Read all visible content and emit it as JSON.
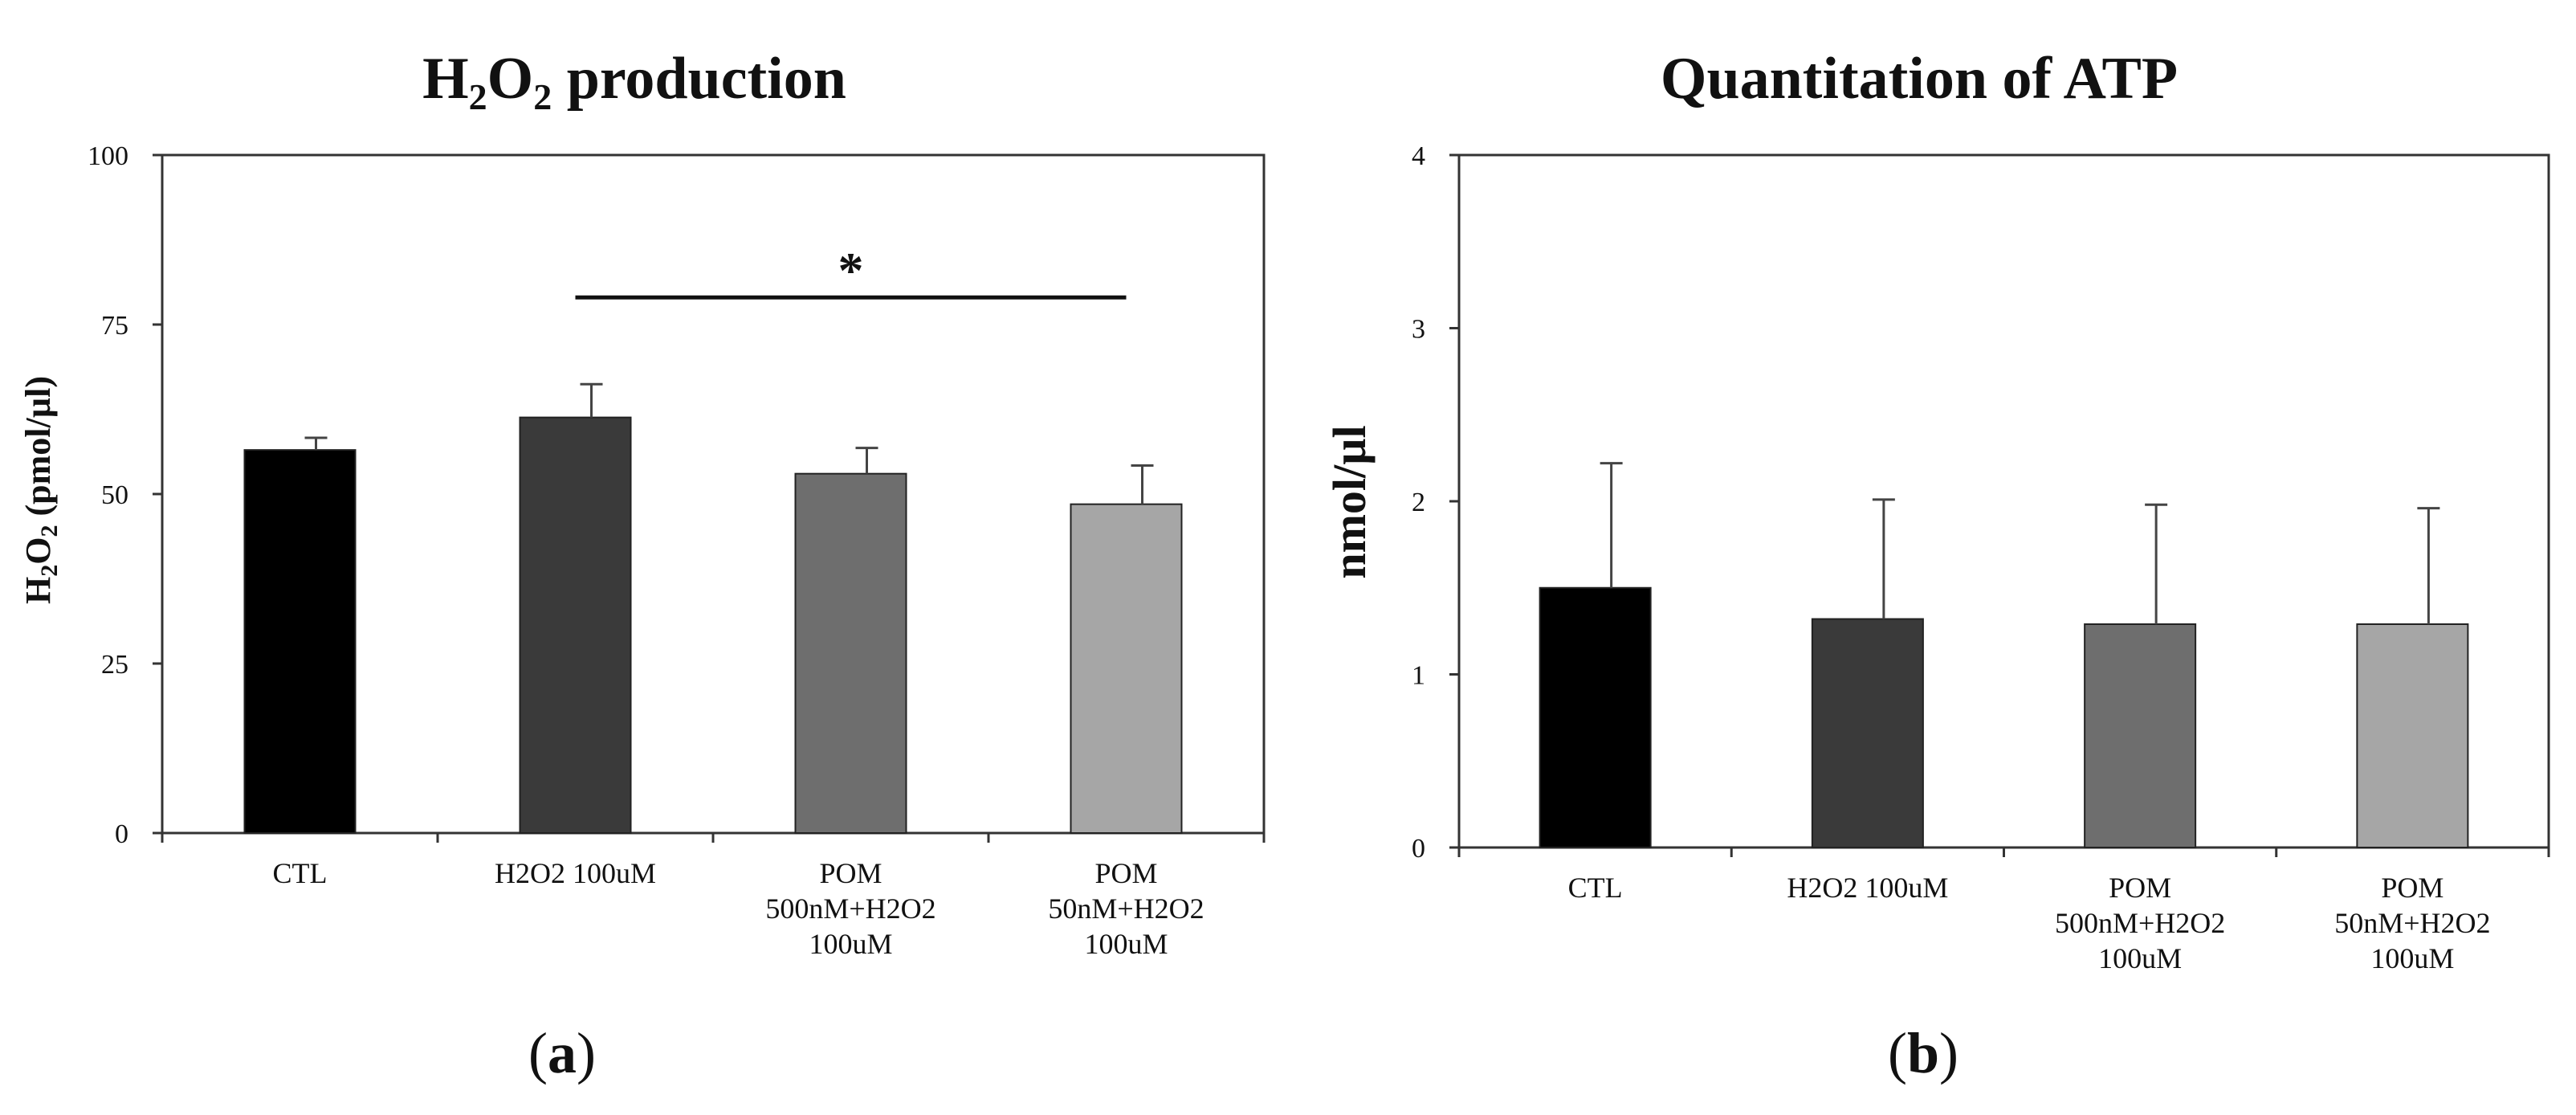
{
  "chart_data": [
    {
      "type": "bar",
      "title": "H2O2 production",
      "title_main": "H",
      "title_sub1": "2",
      "title_mid": "O",
      "title_sub2": "2",
      "title_rest": " production",
      "ylabel": "H2O2 (pmol/µl)",
      "ylabel_main": "H",
      "ylabel_sub1": "2",
      "ylabel_mid": "O",
      "ylabel_sub2": "2",
      "ylabel_rest": " (pmol/µl)",
      "ylim": [
        0,
        100
      ],
      "yticks": [
        "0",
        "25",
        "50",
        "75",
        "100"
      ],
      "categories": [
        [
          "CTL"
        ],
        [
          "H2O2 100uM"
        ],
        [
          "POM",
          "500nM+H2O2",
          "100uM"
        ],
        [
          "POM",
          "50nM+H2O2",
          "100uM"
        ]
      ],
      "values": [
        56.5,
        61.3,
        53.0,
        48.5
      ],
      "errors": [
        1.8,
        4.9,
        3.8,
        5.7
      ],
      "colors": [
        "#000000",
        "#3a3a3a",
        "#6e6e6e",
        "#a6a6a6"
      ],
      "significance": {
        "from": 1,
        "to": 3,
        "label": "*",
        "y": 79
      },
      "panel_label": "a"
    },
    {
      "type": "bar",
      "title": "Quantitation of ATP",
      "ylabel": "nmol/µl",
      "ylim": [
        0,
        4
      ],
      "yticks": [
        "0",
        "1",
        "2",
        "3",
        "4"
      ],
      "categories": [
        [
          "CTL"
        ],
        [
          "H2O2 100uM"
        ],
        [
          "POM",
          "500nM+H2O2",
          "100uM"
        ],
        [
          "POM",
          "50nM+H2O2",
          "100uM"
        ]
      ],
      "values": [
        1.5,
        1.32,
        1.29,
        1.29
      ],
      "errors": [
        0.72,
        0.69,
        0.69,
        0.67
      ],
      "colors": [
        "#000000",
        "#3a3a3a",
        "#6e6e6e",
        "#a6a6a6"
      ],
      "panel_label": "b"
    }
  ]
}
